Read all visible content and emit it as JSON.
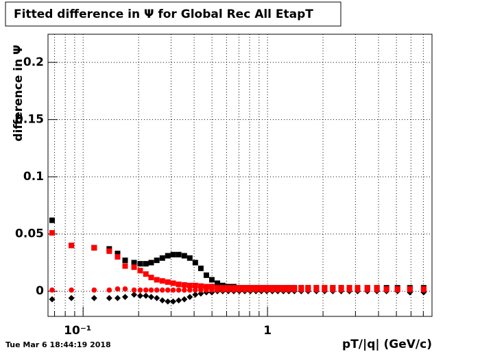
{
  "chart_data": {
    "type": "scatter",
    "title": "Fitted difference in  Ψ  for Global Rec All EtapT",
    "y_label": "difference in Ψ",
    "x_label": "pT/|q| (GeV/c)",
    "timestamp": "Tue Mar  6 18:44:19 2018",
    "log_x": true,
    "grid": true,
    "xlim": [
      0.0645,
      7.8
    ],
    "ylim": [
      -0.022,
      0.2246
    ],
    "xticks": [
      {
        "value": 0.1,
        "label": "10⁻¹"
      },
      1
    ],
    "xminorticks": [
      0.07,
      0.08,
      0.09,
      0.2,
      0.3,
      0.4,
      0.5,
      0.6,
      0.7,
      0.8,
      0.9,
      2,
      3,
      4,
      5,
      6,
      7
    ],
    "yticks": [
      0,
      0.05,
      0.1,
      0.15,
      0.2
    ],
    "x": [
      0.0679,
      0.0864,
      0.1148,
      0.1386,
      0.1538,
      0.169,
      0.189,
      0.204,
      0.219,
      0.234,
      0.251,
      0.269,
      0.288,
      0.308,
      0.33,
      0.354,
      0.379,
      0.406,
      0.435,
      0.466,
      0.499,
      0.535,
      0.572,
      0.613,
      0.656,
      0.703,
      0.753,
      0.807,
      0.865,
      0.926,
      0.991,
      1.062,
      1.137,
      1.219,
      1.305,
      1.398,
      1.524,
      1.66,
      1.841,
      2.04,
      2.26,
      2.51,
      2.78,
      3.08,
      3.48,
      3.92,
      4.42,
      5.07,
      5.92,
      7.03
    ],
    "series": [
      {
        "color": "#000000",
        "marker": "square",
        "values": [
          0.062,
          0.04,
          0.038,
          0.037,
          0.033,
          0.027,
          0.025,
          0.024,
          0.024,
          0.025,
          0.027,
          0.029,
          0.031,
          0.032,
          0.032,
          0.031,
          0.029,
          0.025,
          0.02,
          0.014,
          0.01,
          0.007,
          0.005,
          0.004,
          0.004,
          0.003,
          0.003,
          0.003,
          0.003,
          0.003,
          0.003,
          0.003,
          0.003,
          0.003,
          0.003,
          0.003,
          0.003,
          0.003,
          0.003,
          0.003,
          0.003,
          0.003,
          0.003,
          0.003,
          0.003,
          0.003,
          0.003,
          0.003,
          0.003,
          0.003
        ]
      },
      {
        "color": "#000000",
        "marker": "diamond",
        "values": [
          -0.007,
          -0.006,
          -0.006,
          -0.006,
          -0.006,
          -0.005,
          -0.003,
          -0.004,
          -0.004,
          -0.005,
          -0.006,
          -0.008,
          -0.009,
          -0.009,
          -0.008,
          -0.007,
          -0.005,
          -0.003,
          -0.002,
          -0.001,
          -0.001,
          0,
          0,
          0,
          0,
          0,
          0,
          0,
          0,
          0,
          0,
          0,
          0,
          0,
          0,
          0,
          0,
          0,
          0,
          0,
          0,
          0,
          0,
          0,
          0,
          0,
          0,
          0,
          -0.001,
          -0.001
        ]
      },
      {
        "color": "#ff0000",
        "marker": "square",
        "values": [
          0.051,
          0.04,
          0.038,
          0.035,
          0.03,
          0.022,
          0.021,
          0.018,
          0.015,
          0.012,
          0.01,
          0.009,
          0.008,
          0.007,
          0.006,
          0.0055,
          0.005,
          0.005,
          0.0045,
          0.004,
          0.004,
          0.003,
          0.003,
          0.003,
          0.003,
          0.003,
          0.003,
          0.003,
          0.003,
          0.003,
          0.003,
          0.003,
          0.003,
          0.003,
          0.003,
          0.003,
          0.003,
          0.003,
          0.003,
          0.003,
          0.003,
          0.003,
          0.003,
          0.003,
          0.003,
          0.003,
          0.002,
          0.002,
          0.002,
          0.002
        ]
      },
      {
        "color": "#ff0000",
        "marker": "circle",
        "values": [
          0.001,
          0.001,
          0.001,
          0.001,
          0.002,
          0.002,
          0.001,
          0.001,
          0.001,
          0.001,
          0.001,
          0.001,
          0.001,
          0.001,
          0.001,
          0.001,
          0.001,
          0.001,
          0.001,
          0.001,
          0.001,
          0.001,
          0.001,
          0.001,
          0.001,
          0.001,
          0.001,
          0.001,
          0.001,
          0.001,
          0.001,
          0.001,
          0.001,
          0.001,
          0.001,
          0.001,
          0.001,
          0.001,
          0.001,
          0.001,
          0.001,
          0.001,
          0.001,
          0.001,
          0.001,
          0.001,
          0.001,
          0.001,
          0.001,
          0.001
        ]
      }
    ]
  }
}
